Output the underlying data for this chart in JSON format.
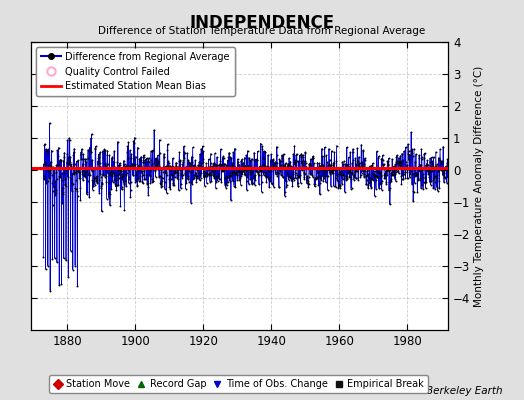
{
  "title": "INDEPENDENCE",
  "subtitle": "Difference of Station Temperature Data from Regional Average",
  "ylabel_right": "Monthly Temperature Anomaly Difference (°C)",
  "xlim": [
    1869.5,
    1992
  ],
  "ylim": [
    -5,
    4
  ],
  "yticks": [
    -4,
    -3,
    -2,
    -1,
    0,
    1,
    2,
    3,
    4
  ],
  "xticks": [
    1880,
    1900,
    1920,
    1940,
    1960,
    1980
  ],
  "bias_value": 0.05,
  "background_color": "#e0e0e0",
  "plot_bg_color": "#ffffff",
  "grid_color": "#c0c0c0",
  "line_color": "#0000cc",
  "dot_color": "#000000",
  "bias_color": "#ff0000",
  "qc_color": "#ffaacc",
  "watermark": "Berkeley Earth",
  "seed": 12345,
  "start_year": 1873.0,
  "end_year": 1991.9,
  "n_months": 1428
}
